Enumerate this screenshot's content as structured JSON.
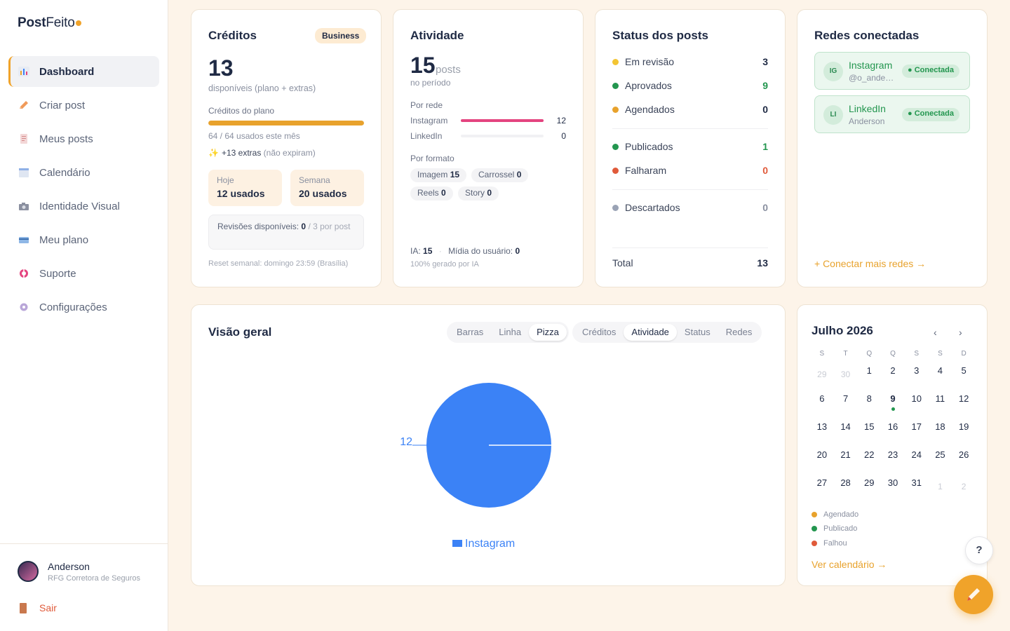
{
  "brand": {
    "name_bold": "Post",
    "name_light": "Feito",
    "accent": "#f0a32a"
  },
  "sidebar": {
    "items": [
      {
        "label": "Dashboard",
        "icon": "chart-icon",
        "active": true
      },
      {
        "label": "Criar post",
        "icon": "pencil-icon"
      },
      {
        "label": "Meus posts",
        "icon": "document-icon"
      },
      {
        "label": "Calendário",
        "icon": "calendar-icon"
      },
      {
        "label": "Identidade Visual",
        "icon": "camera-icon"
      },
      {
        "label": "Meu plano",
        "icon": "credit-card-icon"
      },
      {
        "label": "Suporte",
        "icon": "lifebuoy-icon"
      },
      {
        "label": "Configurações",
        "icon": "gear-icon"
      }
    ],
    "user": {
      "name": "Anderson",
      "org": "RFG Corretora de Seguros"
    },
    "logout_label": "Sair"
  },
  "credits": {
    "title": "Créditos",
    "plan_badge": "Business",
    "available": "13",
    "available_caption": "disponíveis (plano + extras)",
    "plan_label": "Créditos do plano",
    "plan_usage_fraction": 1.0,
    "plan_usage_text": "64 / 64 usados este mês",
    "extras_strong": "+13 extras",
    "extras_note": "(não expiram)",
    "today_label": "Hoje",
    "today_value": "12 usados",
    "week_label": "Semana",
    "week_value": "20 usados",
    "revisions_label": "Revisões disponíveis:",
    "revisions_value": "0",
    "revisions_suffix": "/ 3 por post",
    "reset_note": "Reset semanal: domingo 23:59 (Brasília)"
  },
  "activity": {
    "title": "Atividade",
    "posts_count": "15",
    "posts_unit": "posts",
    "period_caption": "no período",
    "by_network_label": "Por rede",
    "networks": [
      {
        "name": "Instagram",
        "value": "12",
        "fraction": 1.0,
        "color": "#e4447f"
      },
      {
        "name": "LinkedIn",
        "value": "0",
        "fraction": 0.0,
        "color": "#e4447f"
      }
    ],
    "by_format_label": "Por formato",
    "formats": [
      {
        "name": "Imagem",
        "value": "15"
      },
      {
        "name": "Carrossel",
        "value": "0"
      },
      {
        "name": "Reels",
        "value": "0"
      },
      {
        "name": "Story",
        "value": "0"
      }
    ],
    "ia_label": "IA:",
    "ia_value": "15",
    "user_media_label": "Mídia do usuário:",
    "user_media_value": "0",
    "ai_note": "100% gerado por IA"
  },
  "status": {
    "title": "Status dos posts",
    "rows": [
      {
        "label": "Em revisão",
        "value": "3",
        "dot": "#f3c533",
        "val_color": "#1f2a44"
      },
      {
        "label": "Aprovados",
        "value": "9",
        "dot": "#23964f",
        "val_color": "#23964f"
      },
      {
        "label": "Agendados",
        "value": "0",
        "dot": "#e8a22c",
        "val_color": "#1f2a44"
      },
      {
        "label": "Publicados",
        "value": "1",
        "dot": "#23964f",
        "val_color": "#23964f"
      },
      {
        "label": "Falharam",
        "value": "0",
        "dot": "#e05a3a",
        "val_color": "#e05a3a"
      },
      {
        "label": "Descartados",
        "value": "0",
        "dot": "#9aa3b5",
        "val_color": "#8a90a0"
      }
    ],
    "total_label": "Total",
    "total_value": "13"
  },
  "networks": {
    "title": "Redes conectadas",
    "items": [
      {
        "badge": "IG",
        "name": "Instagram",
        "handle": "@o_anderson",
        "status": "● Conectada"
      },
      {
        "badge": "LI",
        "name": "LinkedIn",
        "handle": "Anderson",
        "status": "● Conectada"
      }
    ],
    "connect_more": "+ Conectar mais redes →"
  },
  "overview": {
    "title": "Visão geral",
    "chart_types": [
      "Barras",
      "Linha",
      "Pizza"
    ],
    "chart_type_selected": "Pizza",
    "metrics": [
      "Créditos",
      "Atividade",
      "Status",
      "Redes"
    ],
    "metric_selected": "Atividade"
  },
  "chart_data": {
    "type": "pie",
    "categories": [
      "Instagram"
    ],
    "values": [
      12
    ],
    "colors": [
      "#3b82f6"
    ],
    "data_labels": [
      "12"
    ],
    "legend": [
      "Instagram"
    ],
    "legend_position": "bottom"
  },
  "calendar": {
    "month_label": "Julho 2026",
    "prev": "‹",
    "next": "›",
    "weekdays": [
      "S",
      "T",
      "Q",
      "Q",
      "S",
      "S",
      "D"
    ],
    "days": [
      {
        "d": "29",
        "m": 1
      },
      {
        "d": "30",
        "m": 1
      },
      {
        "d": "1"
      },
      {
        "d": "2"
      },
      {
        "d": "3"
      },
      {
        "d": "4"
      },
      {
        "d": "5"
      },
      {
        "d": "6"
      },
      {
        "d": "7"
      },
      {
        "d": "8"
      },
      {
        "d": "9",
        "t": 1
      },
      {
        "d": "10"
      },
      {
        "d": "11"
      },
      {
        "d": "12"
      },
      {
        "d": "13"
      },
      {
        "d": "14"
      },
      {
        "d": "15"
      },
      {
        "d": "16"
      },
      {
        "d": "17"
      },
      {
        "d": "18"
      },
      {
        "d": "19"
      },
      {
        "d": "20"
      },
      {
        "d": "21"
      },
      {
        "d": "22"
      },
      {
        "d": "23"
      },
      {
        "d": "24"
      },
      {
        "d": "25"
      },
      {
        "d": "26"
      },
      {
        "d": "27"
      },
      {
        "d": "28"
      },
      {
        "d": "29"
      },
      {
        "d": "30"
      },
      {
        "d": "31"
      },
      {
        "d": "1",
        "m": 1
      },
      {
        "d": "2",
        "m": 1
      }
    ],
    "legend": [
      {
        "label": "Agendado",
        "color": "#e8a22c"
      },
      {
        "label": "Publicado",
        "color": "#23964f"
      },
      {
        "label": "Falhou",
        "color": "#e05a3a"
      }
    ],
    "view_calendar": "Ver calendário →"
  },
  "help_label": "?"
}
